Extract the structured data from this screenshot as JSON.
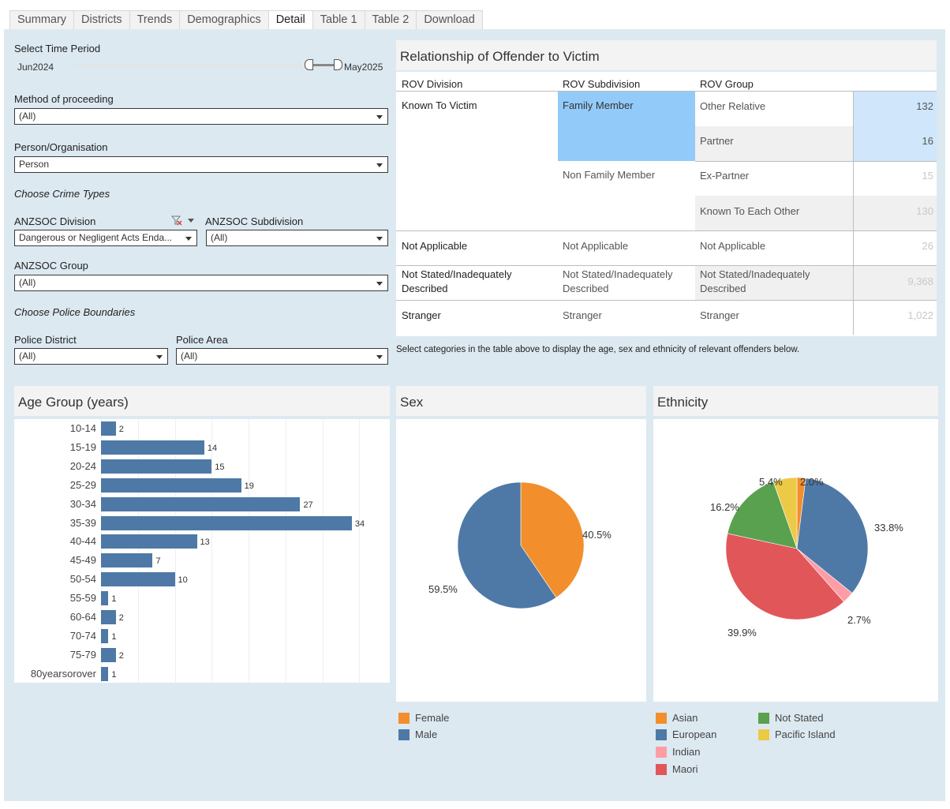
{
  "tabs": [
    "Summary",
    "Districts",
    "Trends",
    "Demographics",
    "Detail",
    "Table 1",
    "Table 2",
    "Download"
  ],
  "active_tab": "Detail",
  "filters": {
    "time_period_label": "Select Time Period",
    "time_start": "Jun2024",
    "time_end": "May2025",
    "method_label": "Method of proceeding",
    "method_value": "(All)",
    "person_label": "Person/Organisation",
    "person_value": "Person",
    "crime_types_heading": "Choose Crime Types",
    "division_label": "ANZSOC Division",
    "division_value": "Dangerous or Negligent Acts Enda...",
    "subdivision_label": "ANZSOC Subdivision",
    "subdivision_value": "(All)",
    "group_label": "ANZSOC Group",
    "group_value": "(All)",
    "boundaries_heading": "Choose Police Boundaries",
    "district_label": "Police District",
    "district_value": "(All)",
    "area_label": "Police Area",
    "area_value": "(All)"
  },
  "rov": {
    "title": "Relationship of Offender to Victim",
    "headers": [
      "ROV Division",
      "ROV Subdivision",
      "ROV Group"
    ],
    "divisions": [
      "Known To Victim",
      "Not Applicable",
      "Not Stated/Inadequately Described",
      "Stranger"
    ],
    "subdivisions": [
      "Family Member",
      "Non Family Member",
      "Not Applicable",
      "Not Stated/Inadequately Described",
      "Stranger"
    ],
    "groups": [
      "Other Relative",
      "Partner",
      "Ex-Partner",
      "Known To Each Other",
      "Not Applicable",
      "Not Stated/Inadequately Described",
      "Stranger"
    ],
    "values": [
      "132",
      "16",
      "15",
      "130",
      "26",
      "9,368",
      "1,022"
    ],
    "note": "Select categories in the  table above to display the age, sex and ethnicity of relevant offenders below."
  },
  "age": {
    "title": "Age Group (years)",
    "categories": [
      "10-14",
      "15-19",
      "20-24",
      "25-29",
      "30-34",
      "35-39",
      "40-44",
      "45-49",
      "50-54",
      "55-59",
      "60-64",
      "70-74",
      "75-79",
      "80yearsorover"
    ],
    "values": [
      2,
      14,
      15,
      19,
      27,
      34,
      13,
      7,
      10,
      1,
      2,
      1,
      2,
      1
    ]
  },
  "sex": {
    "title": "Sex",
    "labels": [
      "40.5%",
      "59.5%"
    ],
    "legend": [
      "Female",
      "Male"
    ]
  },
  "ethnicity": {
    "title": "Ethnicity",
    "labels": [
      "2.0%",
      "33.8%",
      "2.7%",
      "39.9%",
      "16.2%",
      "5.4%"
    ],
    "legend": [
      "Asian",
      "European",
      "Indian",
      "Maori",
      "Not Stated",
      "Pacific Island"
    ]
  },
  "chart_data": [
    {
      "type": "bar",
      "title": "Age Group (years)",
      "categories": [
        "10-14",
        "15-19",
        "20-24",
        "25-29",
        "30-34",
        "35-39",
        "40-44",
        "45-49",
        "50-54",
        "55-59",
        "60-64",
        "70-74",
        "75-79",
        "80yearsorover"
      ],
      "values": [
        2,
        14,
        15,
        19,
        27,
        34,
        13,
        7,
        10,
        1,
        2,
        1,
        2,
        1
      ],
      "orientation": "horizontal",
      "colors": {
        "bar": "#4e79a7"
      }
    },
    {
      "type": "pie",
      "title": "Sex",
      "labels": [
        "Female",
        "Male"
      ],
      "values": [
        40.5,
        59.5
      ],
      "colors": [
        "#f28e2b",
        "#4e79a7"
      ]
    },
    {
      "type": "pie",
      "title": "Ethnicity",
      "labels": [
        "Asian",
        "European",
        "Indian",
        "Maori",
        "Not Stated",
        "Pacific Island"
      ],
      "slice_order": [
        "Asian",
        "European",
        "Indian",
        "Maori",
        "Not Stated",
        "Pacific Island"
      ],
      "values": [
        2.0,
        33.8,
        2.7,
        39.9,
        16.2,
        5.4
      ],
      "colors": [
        "#f28e2b",
        "#4e79a7",
        "#ff9da7",
        "#e15759",
        "#59a14f",
        "#edc948"
      ]
    }
  ]
}
